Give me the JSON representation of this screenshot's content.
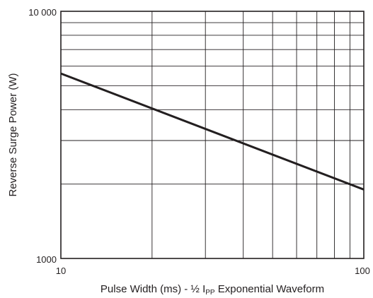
{
  "chart_data": {
    "type": "line",
    "xscale": "log",
    "yscale": "log",
    "xlim": [
      10,
      100
    ],
    "ylim": [
      1000,
      10000
    ],
    "grid": true,
    "xlabel": "Pulse Width (ms) - ½ I",
    "xlabel_subscript": "PP",
    "xlabel_suffix": " Exponential Waveform",
    "ylabel": "Reverse Surge Power (W)",
    "x_tick_labels": [
      "10",
      "100"
    ],
    "y_tick_labels": [
      "10 000",
      "1000"
    ],
    "series": [
      {
        "x": [
          10,
          100
        ],
        "y": [
          5600,
          1900
        ]
      }
    ],
    "line_color": "#231f20",
    "grid_color": "#231f20"
  }
}
